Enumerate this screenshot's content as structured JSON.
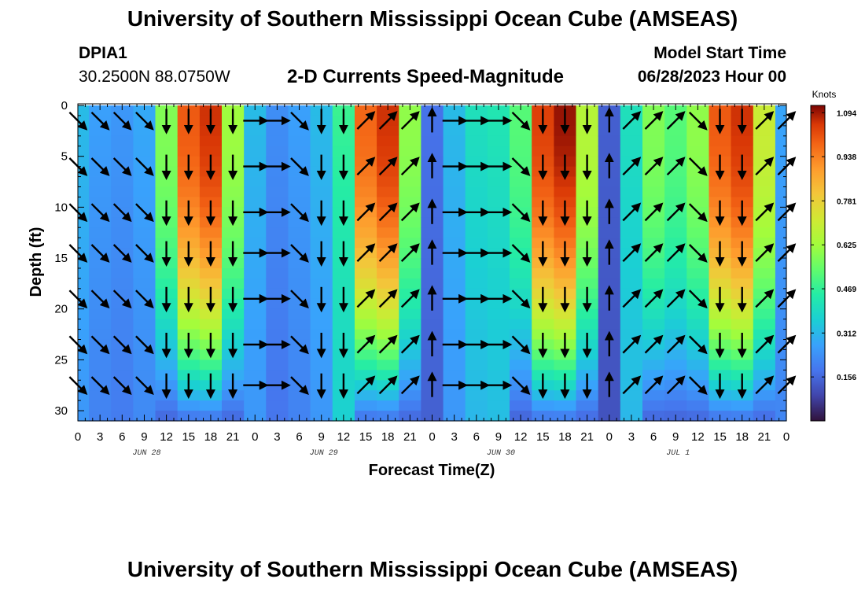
{
  "page": {
    "title": "University of Southern Mississippi Ocean Cube (AMSEAS)",
    "title_repeat": "University of Southern Mississippi Ocean Cube (AMSEAS)",
    "station_id": "DPIA1",
    "coordinates": "30.2500N  88.0750W",
    "subtitle": "2-D Currents Speed-Magnitude",
    "model_start_label": "Model Start Time",
    "model_start_date": "06/28/2023 Hour 00"
  },
  "chart_data": {
    "type": "heatmap",
    "title": "2-D Currents Speed-Magnitude",
    "xlabel": "Forecast Time(Z)",
    "ylabel": "Depth (ft)",
    "xlim": [
      0,
      96
    ],
    "ylim": [
      0,
      31
    ],
    "x_tick_labels": [
      "0",
      "3",
      "6",
      "9",
      "12",
      "15",
      "18",
      "21",
      "0",
      "3",
      "6",
      "9",
      "12",
      "15",
      "18",
      "21",
      "0",
      "3",
      "6",
      "9",
      "12",
      "15",
      "18",
      "21",
      "0",
      "3",
      "6",
      "9",
      "12",
      "15",
      "18",
      "21",
      "0"
    ],
    "y_ticks": [
      0,
      5,
      10,
      15,
      20,
      25,
      30
    ],
    "date_labels": [
      {
        "label": "JUN 28",
        "hour": 9
      },
      {
        "label": "JUN 29",
        "hour": 33
      },
      {
        "label": "JUN 30",
        "hour": 57
      },
      {
        "label": "JUL 1",
        "hour": 81
      }
    ],
    "colorbar": {
      "unit": "Knots",
      "ticks": [
        0.156,
        0.312,
        0.469,
        0.625,
        0.781,
        0.938,
        1.094
      ],
      "range": [
        0,
        1.12
      ]
    },
    "columns": [
      {
        "hour": 0,
        "value": 0.3
      },
      {
        "hour": 3,
        "value": 0.24
      },
      {
        "hour": 6,
        "value": 0.22
      },
      {
        "hour": 9,
        "value": 0.26
      },
      {
        "hour": 12,
        "value": 0.58
      },
      {
        "hour": 15,
        "value": 1.0
      },
      {
        "hour": 18,
        "value": 1.06
      },
      {
        "hour": 21,
        "value": 0.62
      },
      {
        "hour": 24,
        "value": 0.3
      },
      {
        "hour": 27,
        "value": 0.2
      },
      {
        "hour": 30,
        "value": 0.24
      },
      {
        "hour": 33,
        "value": 0.3
      },
      {
        "hour": 36,
        "value": 0.48
      },
      {
        "hour": 39,
        "value": 0.98
      },
      {
        "hour": 42,
        "value": 1.06
      },
      {
        "hour": 45,
        "value": 0.6
      },
      {
        "hour": 48,
        "value": 0.14
      },
      {
        "hour": 51,
        "value": 0.3
      },
      {
        "hour": 54,
        "value": 0.4
      },
      {
        "hour": 57,
        "value": 0.42
      },
      {
        "hour": 60,
        "value": 0.52
      },
      {
        "hour": 63,
        "value": 1.04
      },
      {
        "hour": 66,
        "value": 1.1
      },
      {
        "hour": 69,
        "value": 0.66
      },
      {
        "hour": 72,
        "value": 0.1
      },
      {
        "hour": 75,
        "value": 0.4
      },
      {
        "hour": 78,
        "value": 0.58
      },
      {
        "hour": 81,
        "value": 0.52
      },
      {
        "hour": 84,
        "value": 0.6
      },
      {
        "hour": 87,
        "value": 1.0
      },
      {
        "hour": 90,
        "value": 1.06
      },
      {
        "hour": 93,
        "value": 0.7
      },
      {
        "hour": 96,
        "value": 0.25
      }
    ],
    "vectors": {
      "depths": [
        1.5,
        6,
        10.5,
        14.5,
        19,
        23.5,
        27.5
      ],
      "hour_step": 3,
      "flow_direction_deg_by_column": [
        "se",
        "se",
        "se",
        "se",
        "s",
        "s",
        "s",
        "s",
        "e",
        "e",
        "se",
        "s",
        "s",
        "ne",
        "ne",
        "ne",
        "n",
        "e",
        "e",
        "e",
        "se",
        "s",
        "s",
        "s",
        "n",
        "ne",
        "ne",
        "ne",
        "se",
        "s",
        "s",
        "ne",
        "ne"
      ]
    }
  }
}
